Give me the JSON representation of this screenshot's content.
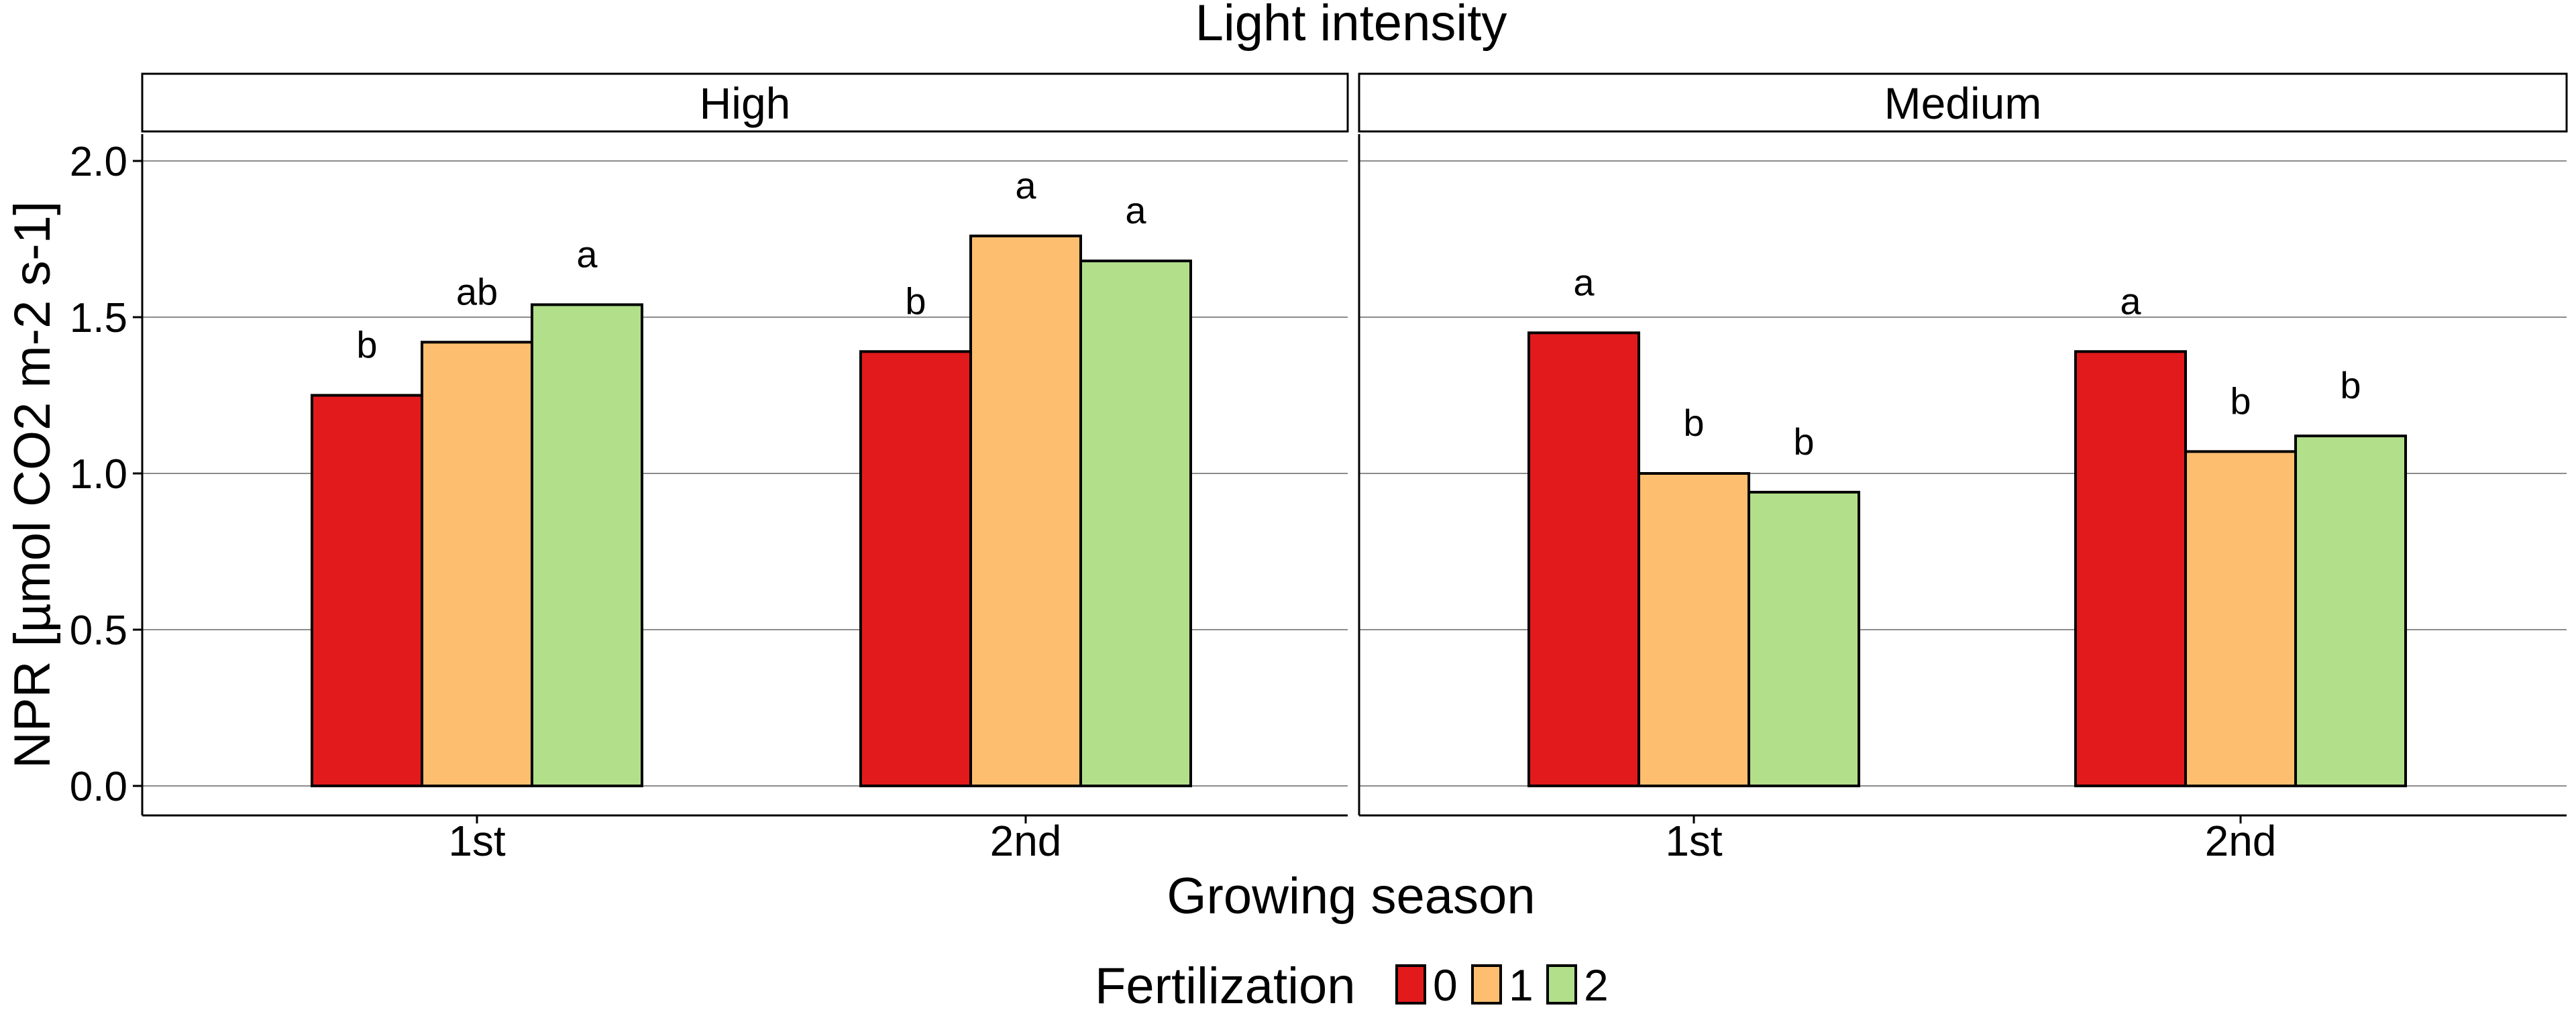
{
  "chart_data": {
    "type": "bar",
    "title": "Light intensity",
    "xlabel": "Growing season",
    "ylabel": "NPR [µmol CO2 m-2 s-1]",
    "ylim": [
      0,
      2.1
    ],
    "yticks": [
      "0.0",
      "0.5",
      "1.0",
      "1.5",
      "2.0"
    ],
    "grid": "horizontal",
    "legend": {
      "title": "Fertilization",
      "position": "bottom",
      "entries": [
        "0",
        "1",
        "2"
      ]
    },
    "colors": [
      "#e31a1c",
      "#fdbf6f",
      "#b2df8a"
    ],
    "categories": [
      "1st",
      "2nd"
    ],
    "panels": [
      {
        "name": "High",
        "series": [
          {
            "name": "0",
            "values": [
              1.25,
              1.39
            ],
            "labels": [
              "b",
              "b"
            ]
          },
          {
            "name": "1",
            "values": [
              1.42,
              1.76
            ],
            "labels": [
              "ab",
              "a"
            ]
          },
          {
            "name": "2",
            "values": [
              1.54,
              1.68
            ],
            "labels": [
              "a",
              "a"
            ]
          }
        ]
      },
      {
        "name": "Medium",
        "series": [
          {
            "name": "0",
            "values": [
              1.45,
              1.39
            ],
            "labels": [
              "a",
              "a"
            ]
          },
          {
            "name": "1",
            "values": [
              1.0,
              1.07
            ],
            "labels": [
              "b",
              "b"
            ]
          },
          {
            "name": "2",
            "values": [
              0.94,
              1.12
            ],
            "labels": [
              "b",
              "b"
            ]
          }
        ]
      }
    ]
  }
}
